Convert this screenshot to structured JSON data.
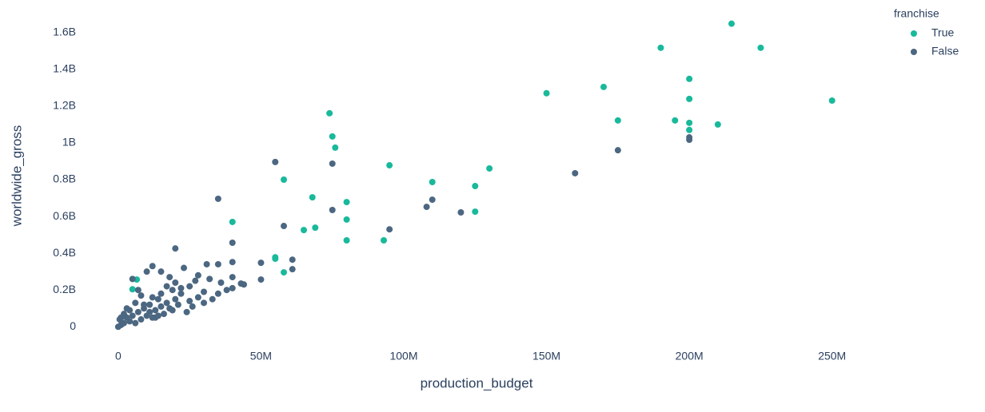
{
  "chart_data": {
    "type": "scatter",
    "x_label": "production_budget",
    "y_label": "worldwide_gross",
    "legend_title": "franchise",
    "legend_position": "top-right",
    "xlim": [
      -12000000.0,
      268000000.0
    ],
    "xticks": [
      0,
      {
        "value": 50000000.0,
        "label": "50M"
      },
      {
        "value": 100000000.0,
        "label": "100M"
      },
      {
        "value": 150000000.0,
        "label": "150M"
      },
      {
        "value": 200000000.0,
        "label": "200M"
      },
      {
        "value": 250000000.0,
        "label": "250M"
      }
    ],
    "ylim": [
      -90000000.0,
      1690000000.0
    ],
    "yticks": [
      0,
      {
        "value": 200000000.0,
        "label": "0.2B"
      },
      {
        "value": 400000000.0,
        "label": "0.4B"
      },
      {
        "value": 600000000.0,
        "label": "0.6B"
      },
      {
        "value": 800000000.0,
        "label": "0.8B"
      },
      {
        "value": 1000000000.0,
        "label": "1B"
      },
      {
        "value": 1200000000.0,
        "label": "1.2B"
      },
      {
        "value": 1400000000.0,
        "label": "1.4B"
      },
      {
        "value": 1600000000.0,
        "label": "1.6B"
      }
    ],
    "grid": false,
    "series": [
      {
        "name": "True",
        "color": "#19b99b",
        "x": [
          214800000.0,
          190000000.0,
          225000000.0,
          200000000.0,
          150000000.0,
          170000000.0,
          200000000.0,
          250000000.0,
          175000000.0,
          195000000.0,
          200000000.0,
          210000000.0,
          200000000.0,
          74000000.0,
          75000000.0,
          76000000.0,
          95000000.0,
          130000000.0,
          58000000.0,
          110000000.0,
          125000000.0,
          68000000.0,
          80000000.0,
          80000000.0,
          40000000.0,
          69000000.0,
          65000000.0,
          125000000.0,
          80000000.0,
          93000000.0,
          55000000.0,
          55000000.0,
          58000000.0,
          6500000.0,
          5000000.0
        ],
        "values": [
          1648000000.0,
          1517000000.0,
          1517000000.0,
          1348000000.0,
          1270000000.0,
          1304000000.0,
          1239000000.0,
          1230000000.0,
          1122000000.0,
          1122000000.0,
          1109000000.0,
          1100000000.0,
          1070000000.0,
          1161000000.0,
          1035000000.0,
          974000000.0,
          878000000.0,
          861000000.0,
          800000000.0,
          787000000.0,
          765000000.0,
          704000000.0,
          678000000.0,
          583000000.0,
          570000000.0,
          539000000.0,
          526000000.0,
          626000000.0,
          470000000.0,
          470000000.0,
          378000000.0,
          370000000.0,
          296000000.0,
          257000000.0,
          204000000.0
        ]
      },
      {
        "name": "False",
        "color": "#4c6781",
        "x": [
          200000000.0,
          200000000.0,
          175000000.0,
          160000000.0,
          55000000.0,
          75000000.0,
          35000000.0,
          110000000.0,
          108000000.0,
          120000000.0,
          75000000.0,
          95000000.0,
          58000000.0,
          40000000.0,
          20000000.0,
          40000000.0,
          50000000.0,
          61000000.0,
          61000000.0,
          50000000.0,
          43000000.0,
          0,
          1000000.0,
          2000000.0,
          500000.0,
          3000000.0,
          4000000.0,
          5000000.0,
          6000000.0,
          7000000.0,
          8000000.0,
          9000000.0,
          10000000.0,
          11000000.0,
          12000000.0,
          13000000.0,
          14000000.0,
          15000000.0,
          16000000.0,
          17000000.0,
          18000000.0,
          19000000.0,
          20000000.0,
          21000000.0,
          22000000.0,
          23000000.0,
          25000000.0,
          25000000.0,
          26000000.0,
          28000000.0,
          30000000.0,
          30000000.0,
          32000000.0,
          33000000.0,
          35000000.0,
          36000000.0,
          38000000.0,
          40000000.0,
          40000000.0,
          44000000.0,
          3000000.0,
          5000000.0,
          8000000.0,
          10000000.0,
          12000000.0,
          15000000.0,
          18000000.0,
          20000000.0,
          2000000.0,
          6000000.0,
          11000000.0,
          13000000.0,
          15000000.0,
          17000000.0,
          7000000.0,
          27000000.0,
          31000000.0,
          22000000.0,
          24000000.0,
          1000000.0,
          4000000.0,
          9000000.0,
          14000000.0,
          19000000.0,
          12000000.0,
          28000000.0,
          35000000.0
        ],
        "values": [
          1030000000.0,
          1017000000.0,
          960000000.0,
          835000000.0,
          896000000.0,
          887000000.0,
          696000000.0,
          691000000.0,
          652000000.0,
          622000000.0,
          635000000.0,
          530000000.0,
          548000000.0,
          457000000.0,
          426000000.0,
          352000000.0,
          348000000.0,
          365000000.0,
          313000000.0,
          257000000.0,
          235000000.0,
          0,
          10000000.0,
          20000000.0,
          40000000.0,
          50000000.0,
          30000000.0,
          60000000.0,
          20000000.0,
          80000000.0,
          40000000.0,
          100000000.0,
          60000000.0,
          120000000.0,
          50000000.0,
          90000000.0,
          150000000.0,
          110000000.0,
          70000000.0,
          130000000.0,
          100000000.0,
          200000000.0,
          150000000.0,
          120000000.0,
          180000000.0,
          320000000.0,
          140000000.0,
          220000000.0,
          110000000.0,
          160000000.0,
          130000000.0,
          190000000.0,
          260000000.0,
          150000000.0,
          180000000.0,
          240000000.0,
          200000000.0,
          210000000.0,
          270000000.0,
          230000000.0,
          100000000.0,
          260000000.0,
          170000000.0,
          300000000.0,
          330000000.0,
          300000000.0,
          270000000.0,
          240000000.0,
          70000000.0,
          130000000.0,
          80000000.0,
          50000000.0,
          180000000.0,
          220000000.0,
          200000000.0,
          250000000.0,
          340000000.0,
          210000000.0,
          80000000.0,
          50000000.0,
          90000000.0,
          120000000.0,
          60000000.0,
          90000000.0,
          160000000.0,
          280000000.0,
          340000000.0
        ]
      }
    ]
  }
}
